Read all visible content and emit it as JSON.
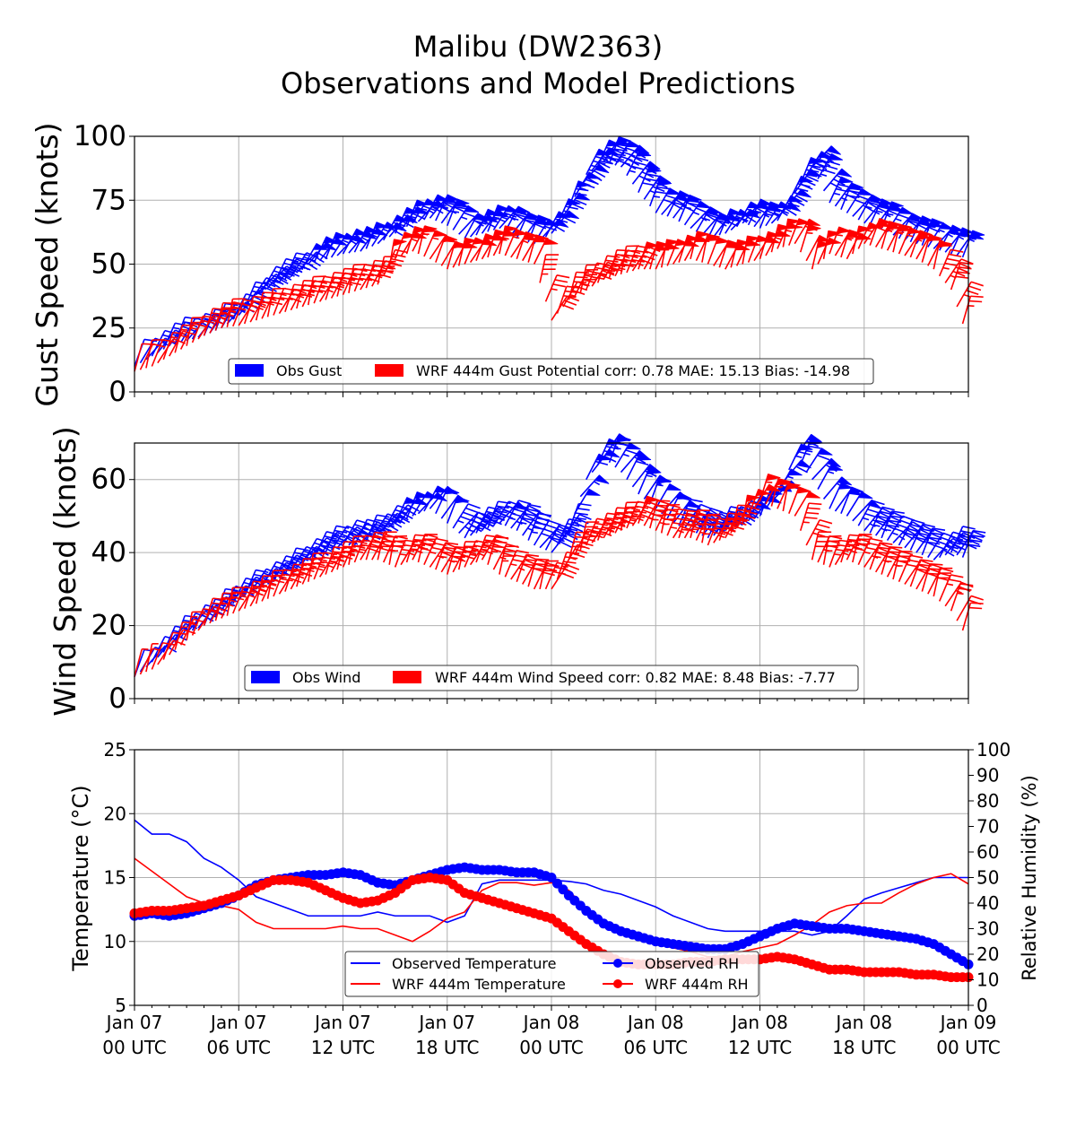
{
  "figure": {
    "title_line1": "Malibu (DW2363)",
    "title_line2": "Observations and Model Predictions"
  },
  "colors": {
    "obs": "#0000ff",
    "model": "#ff0000",
    "model_faint": "#ffb0b0",
    "grid": "#b0b0b0"
  },
  "x_axis": {
    "tick_labels": [
      [
        "Jan 07",
        "00 UTC"
      ],
      [
        "Jan 07",
        "06 UTC"
      ],
      [
        "Jan 07",
        "12 UTC"
      ],
      [
        "Jan 07",
        "18 UTC"
      ],
      [
        "Jan 08",
        "00 UTC"
      ],
      [
        "Jan 08",
        "06 UTC"
      ],
      [
        "Jan 08",
        "12 UTC"
      ],
      [
        "Jan 08",
        "18 UTC"
      ],
      [
        "Jan 09",
        "00 UTC"
      ]
    ],
    "range_hours": [
      0,
      48
    ],
    "major_tick_hours": [
      0,
      6,
      12,
      18,
      24,
      30,
      36,
      42,
      48
    ],
    "minor_tick_every_hours": 1
  },
  "chart_data": [
    {
      "type": "scatter",
      "marks": "wind-barbs",
      "panel": "gust",
      "ylabel": "Gust Speed (knots)",
      "ylim": [
        0,
        100
      ],
      "yticks": [
        0,
        25,
        50,
        75,
        100
      ],
      "grid": true,
      "legend_placement": "lower-center",
      "legend": [
        {
          "label": "Obs Gust",
          "color": "#0000ff"
        },
        {
          "label": "WRF 444m Gust Potential corr: 0.78 MAE: 15.13 Bias: -14.98",
          "color": "#ff0000"
        }
      ],
      "x_hours": [
        0,
        1,
        2,
        3,
        4,
        5,
        6,
        7,
        8,
        9,
        10,
        11,
        12,
        13,
        14,
        15,
        16,
        17,
        18,
        19,
        20,
        21,
        22,
        23,
        24,
        25,
        26,
        27,
        28,
        29,
        30,
        31,
        32,
        33,
        34,
        35,
        36,
        37,
        38,
        39,
        40,
        41,
        42,
        43,
        44,
        45,
        46,
        47,
        48
      ],
      "series": [
        {
          "name": "Obs Gust",
          "values": [
            10,
            14,
            18,
            20,
            22,
            25,
            30,
            38,
            42,
            45,
            50,
            52,
            54,
            55,
            58,
            62,
            66,
            68,
            65,
            60,
            62,
            64,
            60,
            58,
            62,
            72,
            85,
            90,
            88,
            78,
            70,
            68,
            64,
            60,
            62,
            66,
            64,
            67,
            78,
            88,
            74,
            70,
            66,
            64,
            60,
            58,
            56,
            54,
            52
          ]
        },
        {
          "name": "WRF 444m Gust Potential",
          "values": [
            8,
            10,
            14,
            18,
            22,
            25,
            26,
            28,
            30,
            32,
            34,
            36,
            38,
            40,
            42,
            52,
            55,
            52,
            48,
            50,
            52,
            54,
            52,
            50,
            28,
            36,
            40,
            44,
            46,
            48,
            48,
            50,
            52,
            50,
            48,
            50,
            52,
            56,
            58,
            48,
            54,
            52,
            58,
            56,
            54,
            52,
            48,
            40,
            20
          ]
        }
      ]
    },
    {
      "type": "scatter",
      "marks": "wind-barbs",
      "panel": "wind",
      "ylabel": "Wind Speed (knots)",
      "ylim": [
        0,
        70
      ],
      "yticks": [
        0,
        20,
        40,
        60
      ],
      "grid": true,
      "legend_placement": "lower-center",
      "legend": [
        {
          "label": "Obs Wind",
          "color": "#0000ff"
        },
        {
          "label": "WRF 444m Wind Speed corr: 0.82 MAE: 8.48 Bias: -7.77",
          "color": "#ff0000"
        }
      ],
      "x_hours": [
        0,
        1,
        2,
        3,
        4,
        5,
        6,
        7,
        8,
        9,
        10,
        11,
        12,
        13,
        14,
        15,
        16,
        17,
        18,
        19,
        20,
        21,
        22,
        23,
        24,
        25,
        26,
        27,
        28,
        29,
        30,
        31,
        32,
        33,
        34,
        35,
        36,
        37,
        38,
        39,
        40,
        41,
        42,
        43,
        44,
        45,
        46,
        47,
        48
      ],
      "series": [
        {
          "name": "Obs Wind",
          "values": [
            6,
            10,
            14,
            18,
            20,
            24,
            27,
            30,
            32,
            35,
            38,
            40,
            42,
            42,
            45,
            48,
            50,
            52,
            48,
            44,
            46,
            48,
            46,
            42,
            40,
            46,
            60,
            66,
            62,
            56,
            52,
            48,
            46,
            44,
            46,
            48,
            50,
            56,
            66,
            60,
            52,
            50,
            46,
            44,
            42,
            40,
            38,
            40,
            38
          ]
        },
        {
          "name": "WRF 444m Wind Speed",
          "values": [
            6,
            8,
            12,
            16,
            20,
            22,
            24,
            26,
            28,
            30,
            32,
            34,
            36,
            38,
            38,
            36,
            38,
            36,
            34,
            36,
            38,
            34,
            32,
            30,
            30,
            38,
            42,
            44,
            46,
            48,
            46,
            44,
            44,
            42,
            44,
            48,
            54,
            52,
            50,
            38,
            36,
            38,
            36,
            34,
            32,
            30,
            28,
            24,
            16
          ]
        }
      ]
    },
    {
      "type": "line",
      "panel": "temperature-rh",
      "ylabel": "Temperature (°C)",
      "ylabel_right": "Relative Humidity (%)",
      "ylim": [
        5,
        25
      ],
      "yticks": [
        5,
        10,
        15,
        20,
        25
      ],
      "ylim_right": [
        0,
        100
      ],
      "yticks_right": [
        0,
        10,
        20,
        30,
        40,
        50,
        60,
        70,
        80,
        90,
        100
      ],
      "grid": true,
      "legend_placement": "lower-center",
      "legend": [
        {
          "label": "Observed Temperature",
          "color": "#0000ff",
          "marker": "none"
        },
        {
          "label": "Observed RH",
          "color": "#0000ff",
          "marker": "circle"
        },
        {
          "label": "WRF 444m Temperature",
          "color": "#ff0000",
          "marker": "none"
        },
        {
          "label": "WRF 444m RH",
          "color": "#ff0000",
          "marker": "circle"
        }
      ],
      "x_hours": [
        0,
        1,
        2,
        3,
        4,
        5,
        6,
        7,
        8,
        9,
        10,
        11,
        12,
        13,
        14,
        15,
        16,
        17,
        18,
        19,
        20,
        21,
        22,
        23,
        24,
        25,
        26,
        27,
        28,
        29,
        30,
        31,
        32,
        33,
        34,
        35,
        36,
        37,
        38,
        39,
        40,
        41,
        42,
        43,
        44,
        45,
        46,
        47,
        48
      ],
      "series": [
        {
          "name": "Observed Temperature",
          "axis": "left",
          "values": [
            19.5,
            18.4,
            18.4,
            17.8,
            16.5,
            15.8,
            14.8,
            13.5,
            13.0,
            12.5,
            12.0,
            12.0,
            12.0,
            12.0,
            12.3,
            12.0,
            12.0,
            12.0,
            11.5,
            12.0,
            14.5,
            14.8,
            14.8,
            14.8,
            14.8,
            14.7,
            14.5,
            14.0,
            13.7,
            13.2,
            12.7,
            12.0,
            11.5,
            11.0,
            10.8,
            10.8,
            10.8,
            10.8,
            10.8,
            10.5,
            10.8,
            12.0,
            13.3,
            13.8,
            14.2,
            14.6,
            15.0,
            15.0,
            15.0
          ]
        },
        {
          "name": "WRF 444m Temperature",
          "axis": "left",
          "values": [
            16.5,
            15.5,
            14.5,
            13.5,
            13.0,
            12.8,
            12.5,
            11.5,
            11.0,
            11.0,
            11.0,
            11.0,
            11.2,
            11.0,
            11.0,
            10.5,
            10.0,
            10.8,
            11.8,
            12.3,
            14.0,
            14.6,
            14.6,
            14.4,
            14.6,
            14.0,
            12.5,
            11.5,
            10.8,
            10.2,
            9.8,
            9.5,
            9.2,
            8.8,
            8.8,
            9.2,
            9.5,
            9.8,
            10.5,
            11.3,
            12.3,
            12.8,
            13.0,
            13.0,
            13.8,
            14.5,
            15.0,
            15.3,
            14.5
          ]
        },
        {
          "name": "Observed RH",
          "axis": "right",
          "values": [
            35,
            36,
            35,
            36,
            38,
            40,
            43,
            47,
            49,
            50,
            51,
            51,
            52,
            51,
            48,
            47,
            49,
            51,
            53,
            54,
            53,
            53,
            52,
            52,
            50,
            43,
            37,
            32,
            29,
            27,
            25,
            24,
            23,
            22,
            22,
            24,
            27,
            30,
            32,
            31,
            30,
            30,
            29,
            28,
            27,
            26,
            24,
            20,
            16
          ]
        },
        {
          "name": "WRF 444m RH",
          "axis": "right",
          "values": [
            36,
            37,
            37,
            38,
            39,
            41,
            43,
            46,
            49,
            49,
            48,
            45,
            42,
            40,
            41,
            44,
            49,
            50,
            49,
            44,
            42,
            40,
            38,
            36,
            34,
            29,
            24,
            20,
            17,
            16,
            16,
            16,
            17,
            17,
            18,
            18,
            18,
            19,
            18,
            16,
            14,
            14,
            13,
            13,
            13,
            12,
            12,
            11,
            11
          ]
        }
      ]
    }
  ]
}
